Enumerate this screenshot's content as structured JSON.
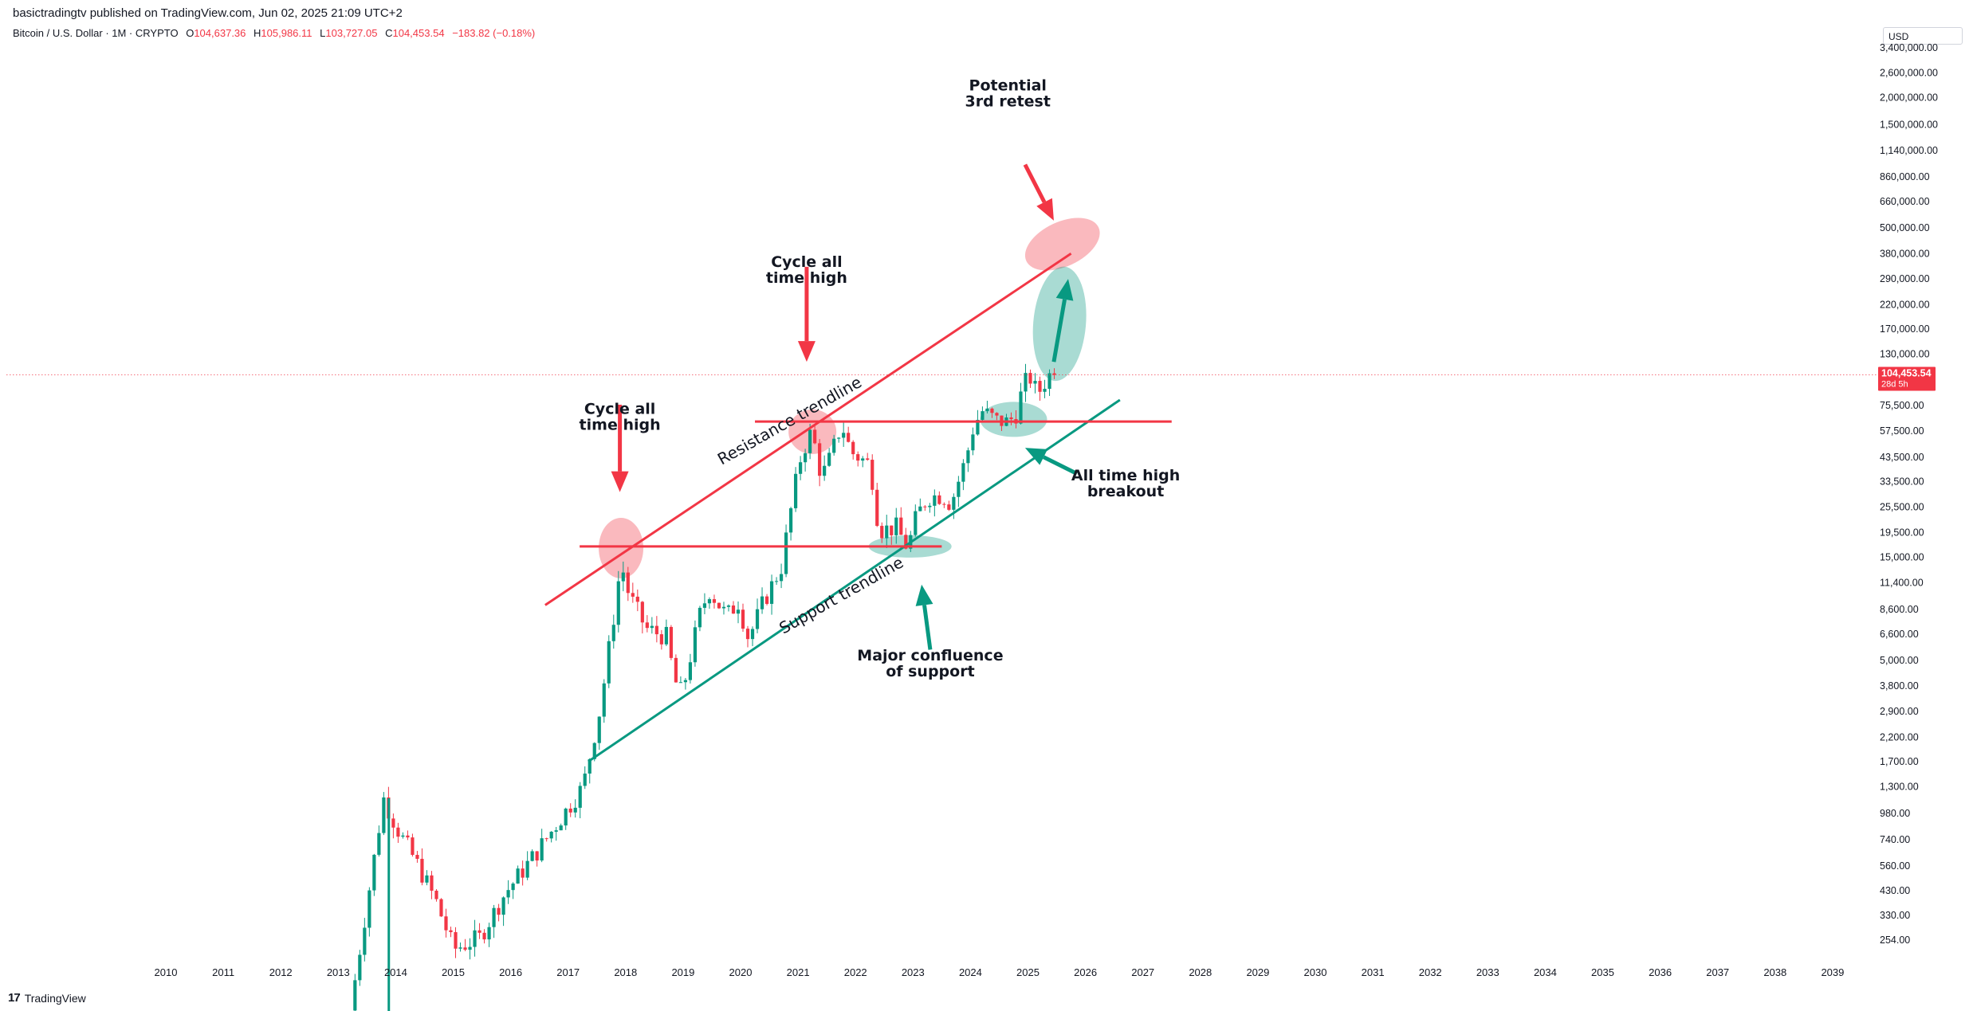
{
  "header": {
    "published": "basictradingtv published on TradingView.com, Jun 02, 2025 21:09 UTC+2"
  },
  "ohlc": {
    "symbol": "Bitcoin / U.S. Dollar · 1M · CRYPTO",
    "o_label": "O",
    "o_value": "104,637.36",
    "h_label": "H",
    "h_value": "105,986.11",
    "l_label": "L",
    "l_value": "103,727.05",
    "c_label": "C",
    "c_value": "104,453.54",
    "change": "−183.82 (−0.18%)"
  },
  "currency": "USD",
  "footer": {
    "logo": "17",
    "brand": "TradingView"
  },
  "chart_data": {
    "type": "candlestick",
    "scale": "log",
    "x_ticks": [
      "2010",
      "2011",
      "2012",
      "2013",
      "2014",
      "2015",
      "2016",
      "2017",
      "2018",
      "2019",
      "2020",
      "2021",
      "2022",
      "2023",
      "2024",
      "2025",
      "2026",
      "2027",
      "2028",
      "2029",
      "2030",
      "2031",
      "2032",
      "2033",
      "2034",
      "2035",
      "2036",
      "2037",
      "2038",
      "2039"
    ],
    "y_ticks": [
      {
        "v": 3400000,
        "label": "3,400,000.00"
      },
      {
        "v": 2600000,
        "label": "2,600,000.00"
      },
      {
        "v": 2000000,
        "label": "2,000,000.00"
      },
      {
        "v": 1500000,
        "label": "1,500,000.00"
      },
      {
        "v": 1140000,
        "label": "1,140,000.00"
      },
      {
        "v": 860000,
        "label": "860,000.00"
      },
      {
        "v": 660000,
        "label": "660,000.00"
      },
      {
        "v": 500000,
        "label": "500,000.00"
      },
      {
        "v": 380000,
        "label": "380,000.00"
      },
      {
        "v": 290000,
        "label": "290,000.00"
      },
      {
        "v": 220000,
        "label": "220,000.00"
      },
      {
        "v": 170000,
        "label": "170,000.00"
      },
      {
        "v": 130000,
        "label": "130,000.00"
      },
      {
        "v": 75500,
        "label": "75,500.00"
      },
      {
        "v": 57500,
        "label": "57,500.00"
      },
      {
        "v": 43500,
        "label": "43,500.00"
      },
      {
        "v": 33500,
        "label": "33,500.00"
      },
      {
        "v": 25500,
        "label": "25,500.00"
      },
      {
        "v": 19500,
        "label": "19,500.00"
      },
      {
        "v": 15000,
        "label": "15,000.00"
      },
      {
        "v": 11400,
        "label": "11,400.00"
      },
      {
        "v": 8600,
        "label": "8,600.00"
      },
      {
        "v": 6600,
        "label": "6,600.00"
      },
      {
        "v": 5000,
        "label": "5,000.00"
      },
      {
        "v": 3800,
        "label": "3,800.00"
      },
      {
        "v": 2900,
        "label": "2,900.00"
      },
      {
        "v": 2200,
        "label": "2,200.00"
      },
      {
        "v": 1700,
        "label": "1,700.00"
      },
      {
        "v": 1300,
        "label": "1,300.00"
      },
      {
        "v": 980,
        "label": "980.00"
      },
      {
        "v": 740,
        "label": "740.00"
      },
      {
        "v": 560,
        "label": "560.00"
      },
      {
        "v": 430,
        "label": "430.00"
      },
      {
        "v": 330,
        "label": "330.00"
      },
      {
        "v": 254,
        "label": "254.00"
      }
    ],
    "y_range": [
      200,
      3700000
    ],
    "x_range": [
      2009.5,
      2039.7
    ],
    "last_price": {
      "value": 104453.54,
      "label": "104,453.54",
      "countdown": "28d 5h"
    },
    "candle_anchors": [
      [
        2013.25,
        120
      ],
      [
        2013.83,
        1150
      ],
      [
        2014.1,
        800
      ],
      [
        2014.4,
        580
      ],
      [
        2014.75,
        380
      ],
      [
        2015.05,
        230
      ],
      [
        2015.5,
        260
      ],
      [
        2015.95,
        420
      ],
      [
        2016.5,
        650
      ],
      [
        2016.95,
        960
      ],
      [
        2017.3,
        1300
      ],
      [
        2017.6,
        3000
      ],
      [
        2017.85,
        8500
      ],
      [
        2017.96,
        14200
      ],
      [
        2018.1,
        10000
      ],
      [
        2018.4,
        7000
      ],
      [
        2018.75,
        6400
      ],
      [
        2018.9,
        4000
      ],
      [
        2019.02,
        3500
      ],
      [
        2019.35,
        8500
      ],
      [
        2019.5,
        10500
      ],
      [
        2019.8,
        8000
      ],
      [
        2020.0,
        9300
      ],
      [
        2020.18,
        6300
      ],
      [
        2020.45,
        9400
      ],
      [
        2020.75,
        13500
      ],
      [
        2020.96,
        29000
      ],
      [
        2021.1,
        45000
      ],
      [
        2021.28,
        57500
      ],
      [
        2021.45,
        35000
      ],
      [
        2021.6,
        43000
      ],
      [
        2021.8,
        62000
      ],
      [
        2021.96,
        46000
      ],
      [
        2022.3,
        40000
      ],
      [
        2022.45,
        20000
      ],
      [
        2022.75,
        20500
      ],
      [
        2022.95,
        16500
      ],
      [
        2023.1,
        23000
      ],
      [
        2023.3,
        28500
      ],
      [
        2023.55,
        29000
      ],
      [
        2023.7,
        26500
      ],
      [
        2023.96,
        42500
      ],
      [
        2024.1,
        61000
      ],
      [
        2024.25,
        71000
      ],
      [
        2024.5,
        64000
      ],
      [
        2024.7,
        63000
      ],
      [
        2024.85,
        70000
      ],
      [
        2024.96,
        94000
      ],
      [
        2025.1,
        102000
      ],
      [
        2025.2,
        84000
      ],
      [
        2025.3,
        94000
      ],
      [
        2025.42,
        104453
      ]
    ],
    "trendlines": [
      {
        "name": "resistance",
        "color": "#f23645",
        "from": [
          2016.6,
          9000
        ],
        "to": [
          2025.75,
          380000
        ]
      },
      {
        "name": "support",
        "color": "#089981",
        "from": [
          2017.35,
          1700
        ],
        "to": [
          2026.6,
          80000
        ]
      },
      {
        "name": "upper-horizontal",
        "color": "#f23645",
        "from": [
          2020.25,
          63500
        ],
        "to": [
          2027.5,
          63500
        ]
      },
      {
        "name": "lower-horizontal",
        "color": "#f23645",
        "from": [
          2017.2,
          16800
        ],
        "to": [
          2023.5,
          16800
        ]
      }
    ],
    "annotations": [
      {
        "lines": [
          "Cycle all",
          "time high"
        ],
        "at": [
          2017.9,
          69000
        ],
        "type": "text"
      },
      {
        "lines": [
          "Cycle all",
          "time high"
        ],
        "at": [
          2021.15,
          330000
        ],
        "type": "text"
      },
      {
        "lines": [
          "Potential",
          "3rd retest"
        ],
        "at": [
          2024.65,
          2160000
        ],
        "type": "text"
      },
      {
        "lines": [
          "All time high",
          "breakout"
        ],
        "at": [
          2026.7,
          34000
        ],
        "type": "text"
      },
      {
        "lines": [
          "Major confluence",
          "of support"
        ],
        "at": [
          2023.3,
          5000
        ],
        "type": "text"
      },
      {
        "lines": [
          "Resistance trendline"
        ],
        "type": "rotated",
        "at": [
          2020.9,
          61000
        ],
        "angle": -29.5
      },
      {
        "lines": [
          "Support trendline"
        ],
        "type": "rotated",
        "at": [
          2021.8,
          9500
        ],
        "angle": -29.5
      }
    ]
  }
}
